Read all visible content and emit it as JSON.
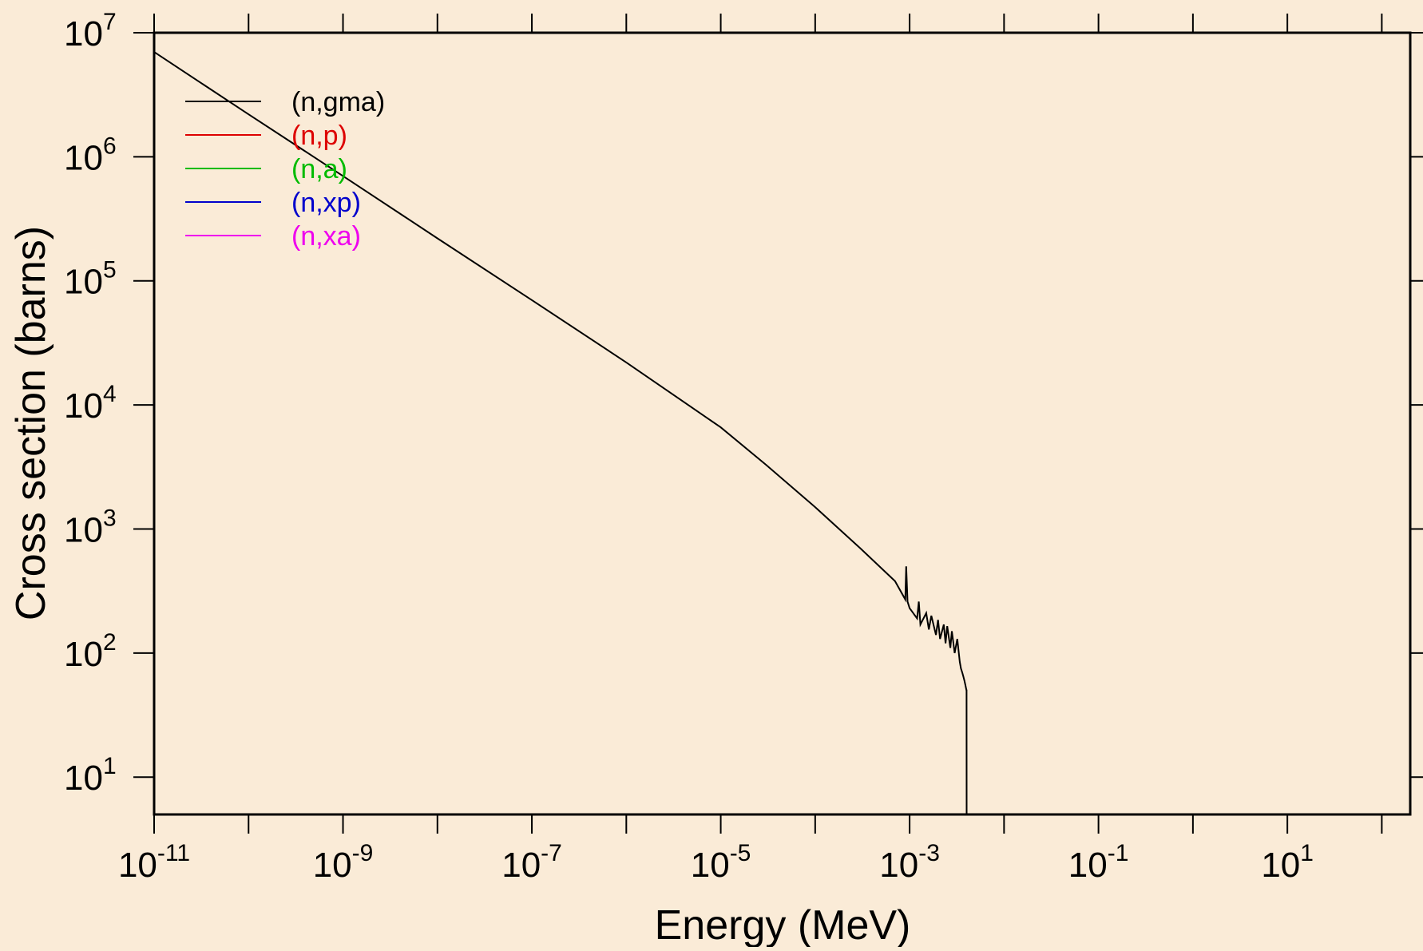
{
  "chart_data": {
    "type": "line",
    "title": "",
    "xlabel": "Energy (MeV)",
    "ylabel": "Cross section (barns)",
    "x_scale": "log",
    "y_scale": "log",
    "xlim": [
      1e-11,
      200
    ],
    "ylim": [
      5,
      10000000
    ],
    "x_major_ticks": [
      {
        "base": "10",
        "exp": "-11"
      },
      {
        "base": "10",
        "exp": "-9"
      },
      {
        "base": "10",
        "exp": "-7"
      },
      {
        "base": "10",
        "exp": "-5"
      },
      {
        "base": "10",
        "exp": "-3"
      },
      {
        "base": "10",
        "exp": "-1"
      },
      {
        "base": "10",
        "exp": "1"
      }
    ],
    "y_major_ticks": [
      {
        "base": "10",
        "exp": "1"
      },
      {
        "base": "10",
        "exp": "2"
      },
      {
        "base": "10",
        "exp": "3"
      },
      {
        "base": "10",
        "exp": "4"
      },
      {
        "base": "10",
        "exp": "5"
      },
      {
        "base": "10",
        "exp": "6"
      },
      {
        "base": "10",
        "exp": "7"
      }
    ],
    "grid": false,
    "legend_position": "top-left",
    "colors": {
      "background": "#faebd7",
      "plot_area": "#faebd7",
      "axes": "#000000"
    },
    "series": [
      {
        "name": "(n,gma)",
        "color": "#000000",
        "x": [
          1e-11,
          1e-10,
          1e-09,
          1e-08,
          1e-07,
          1e-06,
          1e-05,
          3e-05,
          0.0001,
          0.0003,
          0.0007,
          0.0009,
          0.00092,
          0.00095,
          0.001,
          0.0012,
          0.00125,
          0.0013,
          0.0015,
          0.0016,
          0.0017,
          0.0019,
          0.002,
          0.0021,
          0.0023,
          0.0024,
          0.0025,
          0.0027,
          0.0028,
          0.003,
          0.0032,
          0.0034,
          0.0035,
          0.0036,
          0.0037,
          0.0038,
          0.0039,
          0.004,
          0.00401,
          0.00402
        ],
        "y": [
          7000000,
          2200000,
          700000,
          220000,
          70000,
          22000,
          6600,
          3300,
          1500,
          700,
          380,
          270,
          500,
          260,
          230,
          190,
          260,
          170,
          210,
          155,
          200,
          140,
          185,
          130,
          170,
          120,
          165,
          110,
          150,
          100,
          130,
          85,
          75,
          70,
          65,
          60,
          55,
          50,
          50,
          5
        ]
      },
      {
        "name": "(n,p)",
        "color": "#dd0000",
        "x": [
          1e-11,
          200
        ],
        "y": [
          5,
          5
        ]
      },
      {
        "name": "(n,a)",
        "color": "#00bb00",
        "x": [
          1e-11,
          200
        ],
        "y": [
          5,
          5
        ]
      },
      {
        "name": "(n,xp)",
        "color": "#0000cc",
        "x": [
          1e-11,
          200
        ],
        "y": [
          5,
          5
        ]
      },
      {
        "name": "(n,xa)",
        "color": "#ee00ee",
        "x": [
          1e-11,
          200
        ],
        "y": [
          5,
          5
        ]
      }
    ]
  }
}
